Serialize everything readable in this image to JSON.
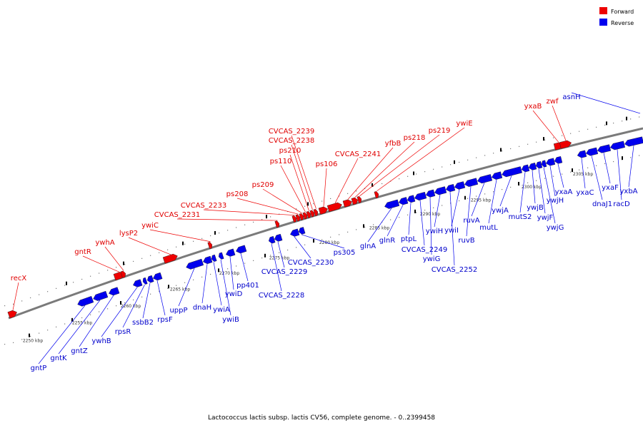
{
  "caption": "Lactococcus lactis subsp. lactis CV56, complete genome. - 0..2399458",
  "legend": [
    {
      "label": "Forward",
      "color": "#ee0000"
    },
    {
      "label": "Reverse",
      "color": "#0000ee"
    }
  ],
  "colors": {
    "forward": "#ee0000",
    "reverse": "#0000ee",
    "backbone": "#888888"
  },
  "scale_ticks": [
    "2250 kbp",
    "2255 kbp",
    "2260 kbp",
    "2265 kbp",
    "2270 kbp",
    "2275 kbp",
    "2280 kbp",
    "2285 kbp",
    "2290 kbp",
    "2295 kbp",
    "2300 kbp",
    "2305 kbp"
  ],
  "forward_genes": [
    "recX",
    "gntR",
    "ywhA",
    "lysP2",
    "ywiC",
    "CVCAS_2231",
    "CVCAS_2233",
    "ps208",
    "ps209",
    "ps110",
    "ps210",
    "CVCAS_2238",
    "CVCAS_2239",
    "ps106",
    "CVCAS_2241",
    "yfbB",
    "ps218",
    "ps219",
    "ywiE",
    "yxaB",
    "zwf"
  ],
  "reverse_genes": [
    "gntP",
    "gntK",
    "gntZ",
    "ywhB",
    "rpsR",
    "ssbB2",
    "rpsF",
    "uppP",
    "dnaH",
    "ywiA",
    "ywiB",
    "ywiD",
    "pp401",
    "CVCAS_2228",
    "CVCAS_2229",
    "CVCAS_2230",
    "ps305",
    "glnA",
    "glnR",
    "ptpL",
    "CVCAS_2249",
    "ywiG",
    "ywiH",
    "CVCAS_2252",
    "ywiI",
    "ruvB",
    "ruvA",
    "mutL",
    "ywjA",
    "mutS2",
    "ywjB",
    "ywjF",
    "ywjG",
    "ywjH",
    "yxaA",
    "yxaC",
    "dnaJ1",
    "yxaF",
    "racD",
    "yxbA",
    "asnH"
  ]
}
